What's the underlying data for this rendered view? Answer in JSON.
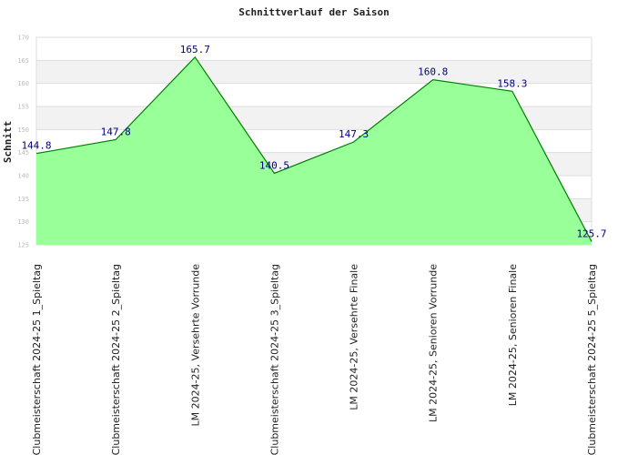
{
  "chart_data": {
    "type": "area",
    "title": "Schnittverlauf der Saison",
    "xlabel": "",
    "ylabel": "Schnitt",
    "ylim": [
      125,
      170
    ],
    "yticks": [
      125,
      130,
      135,
      140,
      145,
      150,
      155,
      160,
      165,
      170
    ],
    "grid": true,
    "categories": [
      "Clubmeisterschaft 2024-25   1_Spieltag",
      "Clubmeisterschaft 2024-25   2_Spieltag",
      "LM 2024-25, Versehrte Vorrunde",
      "Clubmeisterschaft 2024-25   3_Spieltag",
      "LM 2024-25, Versehrte Finale",
      "LM 2024-25, Senioren Vorrunde",
      "LM 2024-25, Senioren Finale",
      "Clubmeisterschaft 2024-25   5_Spieltag"
    ],
    "values": [
      144.8,
      147.8,
      165.7,
      140.5,
      147.3,
      160.8,
      158.3,
      125.7
    ],
    "data_labels": [
      "144.8",
      "147.8",
      "165.7",
      "140.5",
      "147.3",
      "160.8",
      "158.3",
      "125.7"
    ],
    "colors": {
      "fill": "#99ff99",
      "line": "#008000",
      "band": "#f2f2f2",
      "grid": "#dddddd",
      "label": "#000080"
    }
  }
}
